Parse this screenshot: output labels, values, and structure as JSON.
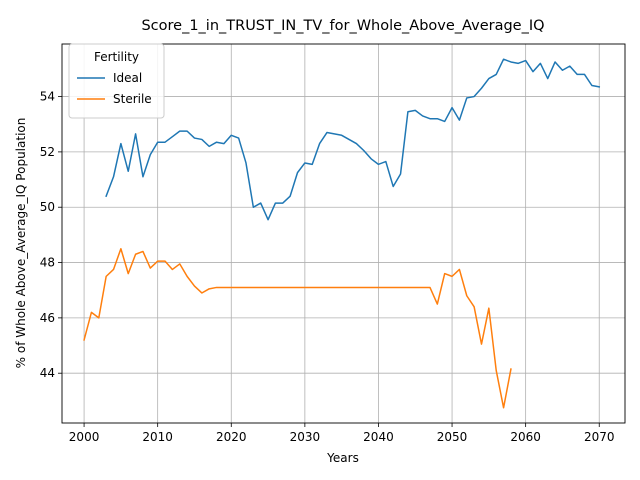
{
  "chart_data": {
    "type": "line",
    "title": "Score_1_in_TRUST_IN_TV_for_Whole_Above_Average_IQ",
    "xlabel": "Years",
    "ylabel": "% of Whole Above_Average_IQ Population",
    "xlim": [
      1997,
      2073.5
    ],
    "ylim": [
      42.2,
      55.9
    ],
    "xticks": [
      2000,
      2010,
      2020,
      2030,
      2040,
      2050,
      2060,
      2070
    ],
    "yticks": [
      44,
      46,
      48,
      50,
      52,
      54
    ],
    "grid": true,
    "legend": {
      "title": "Fertility",
      "placement": "top-left"
    },
    "series": [
      {
        "name": "Ideal",
        "color": "#1f77b4",
        "x": [
          2003,
          2004,
          2005,
          2006,
          2007,
          2008,
          2009,
          2010,
          2011,
          2012,
          2013,
          2014,
          2015,
          2016,
          2017,
          2018,
          2019,
          2020,
          2021,
          2022,
          2023,
          2024,
          2025,
          2026,
          2027,
          2028,
          2029,
          2030,
          2031,
          2032,
          2033,
          2034,
          2035,
          2036,
          2037,
          2038,
          2039,
          2040,
          2041,
          2042,
          2043,
          2044,
          2045,
          2046,
          2047,
          2048,
          2049,
          2050,
          2051,
          2052,
          2053,
          2054,
          2055,
          2056,
          2057,
          2058,
          2059,
          2060,
          2061,
          2062,
          2063,
          2064,
          2065,
          2066,
          2067,
          2068,
          2069,
          2070
        ],
        "values": [
          50.4,
          51.1,
          52.3,
          51.3,
          52.65,
          51.1,
          51.9,
          52.35,
          52.35,
          52.55,
          52.75,
          52.75,
          52.5,
          52.45,
          52.2,
          52.35,
          52.3,
          52.6,
          52.5,
          51.6,
          50.0,
          50.15,
          49.55,
          50.15,
          50.15,
          50.4,
          51.25,
          51.6,
          51.55,
          52.3,
          52.7,
          52.65,
          52.6,
          52.45,
          52.3,
          52.05,
          51.75,
          51.55,
          51.65,
          50.75,
          51.2,
          53.45,
          53.5,
          53.3,
          53.2,
          53.2,
          53.1,
          53.6,
          53.15,
          53.95,
          54.0,
          54.3,
          54.65,
          54.8,
          55.35,
          55.25,
          55.2,
          55.3,
          54.9,
          55.2,
          54.65,
          55.25,
          54.95,
          55.1,
          54.8,
          54.8,
          54.4,
          54.35
        ]
      },
      {
        "name": "Sterile",
        "color": "#ff7f0e",
        "x": [
          2000,
          2001,
          2002,
          2003,
          2004,
          2005,
          2006,
          2007,
          2008,
          2009,
          2010,
          2011,
          2012,
          2013,
          2014,
          2015,
          2016,
          2017,
          2018,
          2019,
          2020,
          2021,
          2022,
          2023,
          2024,
          2025,
          2026,
          2027,
          2028,
          2029,
          2030,
          2031,
          2032,
          2033,
          2034,
          2035,
          2036,
          2037,
          2038,
          2039,
          2040,
          2041,
          2042,
          2043,
          2044,
          2045,
          2046,
          2047,
          2048,
          2049,
          2050,
          2051,
          2052,
          2053,
          2054,
          2055,
          2056,
          2057,
          2058
        ],
        "values": [
          45.2,
          46.2,
          46.0,
          47.5,
          47.75,
          48.5,
          47.6,
          48.3,
          48.4,
          47.8,
          48.05,
          48.05,
          47.75,
          47.95,
          47.5,
          47.15,
          46.9,
          47.05,
          47.1,
          47.1,
          47.1,
          47.1,
          47.1,
          47.1,
          47.1,
          47.1,
          47.1,
          47.1,
          47.1,
          47.1,
          47.1,
          47.1,
          47.1,
          47.1,
          47.1,
          47.1,
          47.1,
          47.1,
          47.1,
          47.1,
          47.1,
          47.1,
          47.1,
          47.1,
          47.1,
          47.1,
          47.1,
          47.1,
          46.5,
          47.6,
          47.5,
          47.75,
          46.8,
          46.4,
          45.05,
          46.35,
          44.1,
          42.75,
          44.15
        ]
      }
    ]
  }
}
